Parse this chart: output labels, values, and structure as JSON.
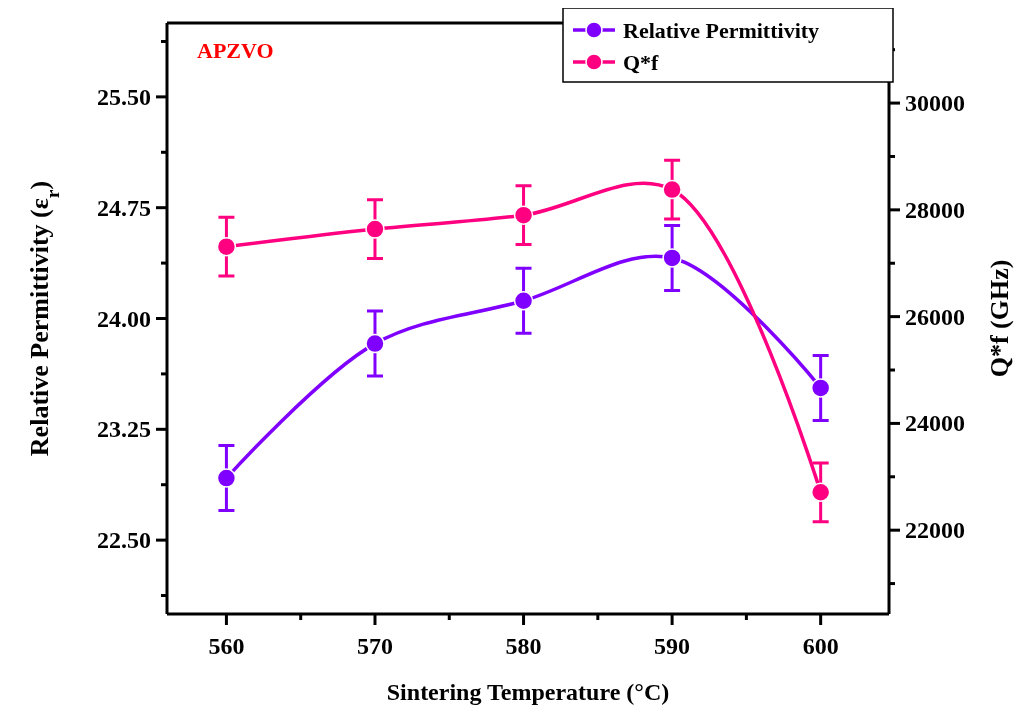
{
  "chart_data": {
    "type": "line",
    "xlabel": "Sintering Temperature (°C)",
    "ylabel": "Relative Permittivity (ε$_{r}$)",
    "y2label": "Q*f (GHz)",
    "annotations": [
      "APZVO"
    ],
    "x": [
      560,
      570,
      580,
      590,
      600
    ],
    "xlim": [
      556,
      604.6
    ],
    "xticks": [
      560,
      570,
      580,
      590,
      600
    ],
    "ylim": [
      22,
      26
    ],
    "yticks": [
      {
        "value": 22.5,
        "label": "22.50"
      },
      {
        "value": 23.25,
        "label": "23.25"
      },
      {
        "value": 24,
        "label": "24.00"
      },
      {
        "value": 24.75,
        "label": "24.75"
      },
      {
        "value": 25.5,
        "label": "25.50"
      }
    ],
    "y2lim": [
      20430,
      31500
    ],
    "y2ticks": [
      22000,
      24000,
      26000,
      28000,
      30000
    ],
    "series": [
      {
        "name": "Relative Permittivity",
        "color": "#8000ff",
        "values": [
          22.92,
          23.83,
          24.12,
          24.41,
          23.53
        ],
        "errors": [
          0.22,
          0.22,
          0.22,
          0.22,
          0.22
        ]
      },
      {
        "name": "Q*f",
        "color": "#ff0080",
        "axis": "y2",
        "values": [
          27310,
          27640,
          27900,
          28380,
          22710
        ],
        "errors": [
          550,
          550,
          550,
          550,
          550
        ]
      }
    ],
    "marker": "circle",
    "line_style": "solid",
    "legend": "top right"
  }
}
